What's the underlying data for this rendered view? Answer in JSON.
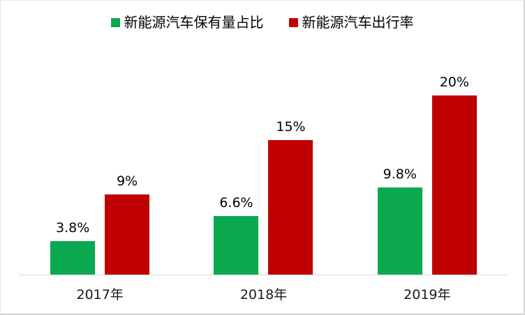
{
  "chart_data": {
    "type": "bar",
    "title": "",
    "categories": [
      "2017年",
      "2018年",
      "2019年"
    ],
    "series": [
      {
        "name": "新能源汽车保有量占比",
        "color": "#0BA94F",
        "values": [
          3.8,
          6.6,
          9.8
        ],
        "data_labels": [
          "3.8%",
          "6.6%",
          "9.8%"
        ]
      },
      {
        "name": "新能源汽车出行率",
        "color": "#C00000",
        "values": [
          9,
          15,
          20
        ],
        "data_labels": [
          "9%",
          "15%",
          "20%"
        ]
      }
    ],
    "xlabel": "",
    "ylabel": "",
    "ylim": [
      0,
      22
    ],
    "grid": false,
    "y_axis_visible": false,
    "legend_position": "top",
    "axis_line_color": "#D9D9D9",
    "data_label_color": "#000000",
    "background_color": "#FFFFFF"
  }
}
